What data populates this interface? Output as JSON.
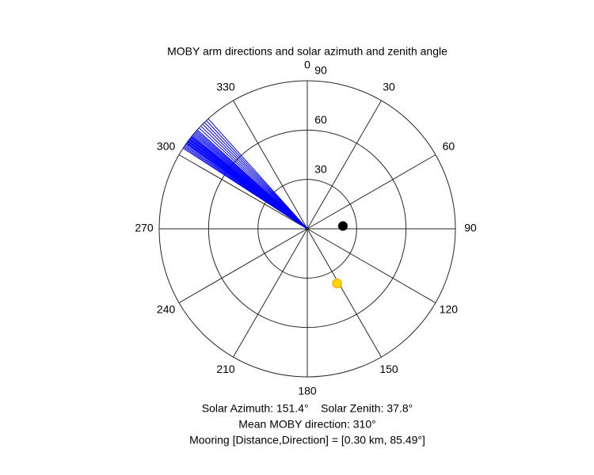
{
  "chart_data": {
    "type": "polar",
    "title": "MOBY arm directions and solar azimuth and zenith angle",
    "thetaticks": [
      0,
      30,
      60,
      90,
      120,
      150,
      180,
      210,
      240,
      270,
      300,
      330
    ],
    "rlim": [
      0,
      90
    ],
    "rticks": [
      30,
      60,
      90
    ],
    "arms": {
      "color": "#0000ff",
      "r": 90,
      "theta": [
        303,
        303.5,
        304,
        304.5,
        305,
        305.3,
        305.6,
        306,
        306.3,
        306.6,
        307,
        307.3,
        307.6,
        308,
        308.3,
        308.6,
        309,
        309.5,
        310,
        310.5,
        311,
        311.5,
        312,
        313,
        314,
        315,
        316,
        317,
        318
      ]
    },
    "sun": {
      "theta": 151.4,
      "r": 37.8,
      "color": "#ffd700"
    },
    "mooring": {
      "theta": 85.49,
      "r": 21.7,
      "color": "#000000"
    },
    "annotations": [
      "Solar Azimuth: 151.4°    Solar Zenith: 37.8°",
      "Mean MOBY direction: 310°",
      "Mooring [Distance,Direction] = [0.30 km, 85.49°]"
    ]
  }
}
